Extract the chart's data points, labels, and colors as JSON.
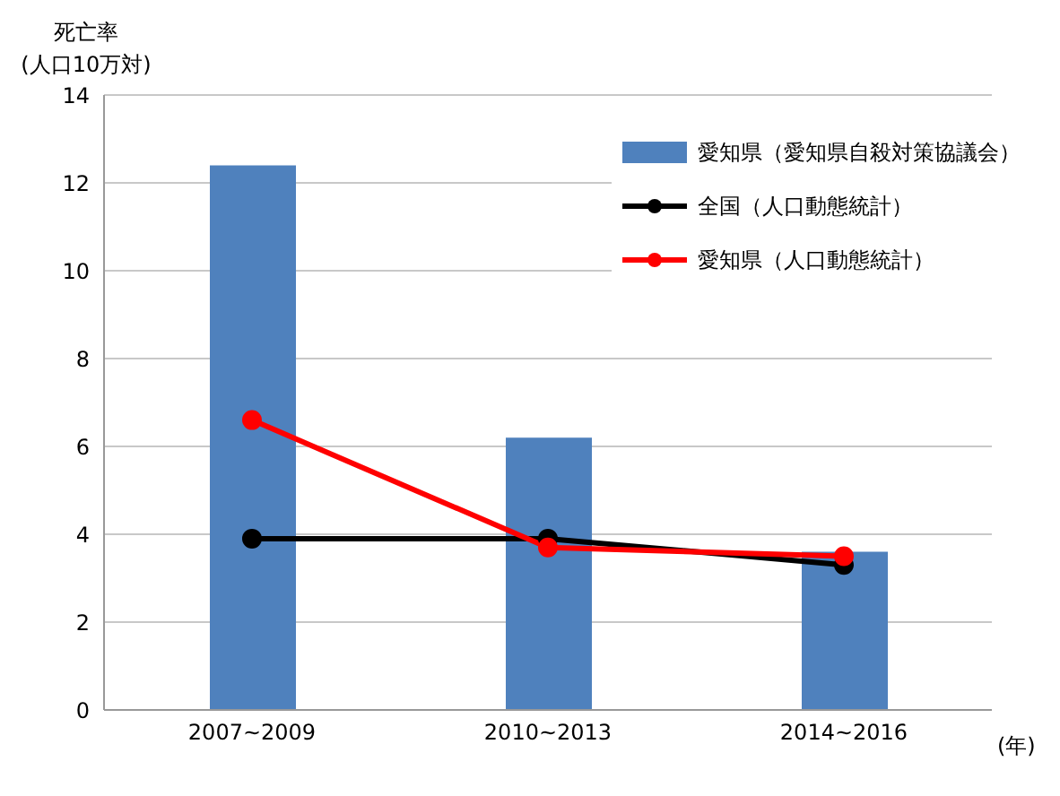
{
  "chart_data": {
    "type": "bar",
    "ylabel": "死亡率\n(人口10万対)",
    "xlabel": "(年)",
    "categories": [
      "2007~2009",
      "2010~2013",
      "2014~2016"
    ],
    "series": [
      {
        "name": "愛知県（愛知県自殺対策協議会）",
        "color": "#4f81bd",
        "values": [
          12.4,
          6.2,
          3.6
        ]
      },
      {
        "name": "全国（人口動態統計）",
        "type": "line",
        "color": "#000000",
        "values": [
          3.9,
          3.9,
          3.3
        ]
      },
      {
        "name": "愛知県（人口動態統計）",
        "type": "line",
        "color": "#ff0000",
        "values": [
          6.6,
          3.7,
          3.5
        ]
      }
    ],
    "ylim": [
      0,
      14
    ],
    "yticks": [
      0,
      2,
      4,
      6,
      8,
      10,
      12,
      14
    ],
    "grid": "y",
    "legend": "top right",
    "marker": "circle",
    "line_style": "solid"
  }
}
